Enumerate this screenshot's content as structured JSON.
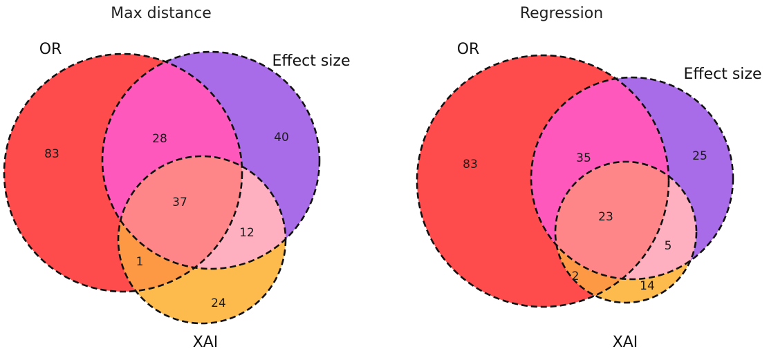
{
  "colors": {
    "or_only": "#fe4b4c",
    "effect_only": "#a86ce8",
    "xai_only": "#fdbb4e",
    "or_effect": "#fe58bd",
    "or_xai": "#fd9845",
    "effect_xai": "#feb0c0",
    "all_three": "#fe8588",
    "outline": "#111111"
  },
  "diagrams": [
    {
      "title": "Max distance",
      "labels": {
        "or": "OR",
        "effect": "Effect size",
        "xai": "XAI"
      },
      "counts": {
        "or_only": "83",
        "effect_only": "40",
        "xai_only": "24",
        "or_effect": "28",
        "or_xai": "1",
        "effect_xai": "12",
        "all_three": "37"
      }
    },
    {
      "title": "Regression",
      "labels": {
        "or": "OR",
        "effect": "Effect size",
        "xai": "XAI"
      },
      "counts": {
        "or_only": "83",
        "effect_only": "25",
        "xai_only": "14",
        "or_effect": "35",
        "or_xai": "2",
        "effect_xai": "5",
        "all_three": "23"
      }
    }
  ]
}
